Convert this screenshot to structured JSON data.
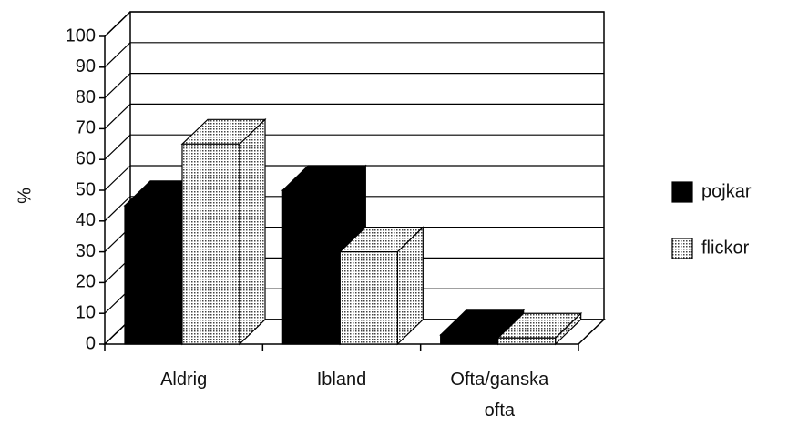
{
  "chart_data": {
    "type": "bar3d",
    "y_label": "%",
    "categories": [
      "Aldrig",
      "Ibland",
      "Ofta/ganska ofta"
    ],
    "series": [
      {
        "name": "pojkar",
        "color": "#000000",
        "pattern": "solid",
        "values": [
          45,
          50,
          3
        ]
      },
      {
        "name": "flickor",
        "color": "#d4d4d4",
        "pattern": "dotted",
        "values": [
          65,
          30,
          2
        ]
      }
    ],
    "ylim": [
      0,
      100
    ],
    "yticks": [
      0,
      10,
      20,
      30,
      40,
      50,
      60,
      70,
      80,
      90,
      100
    ],
    "grid": true,
    "legend": "right"
  }
}
